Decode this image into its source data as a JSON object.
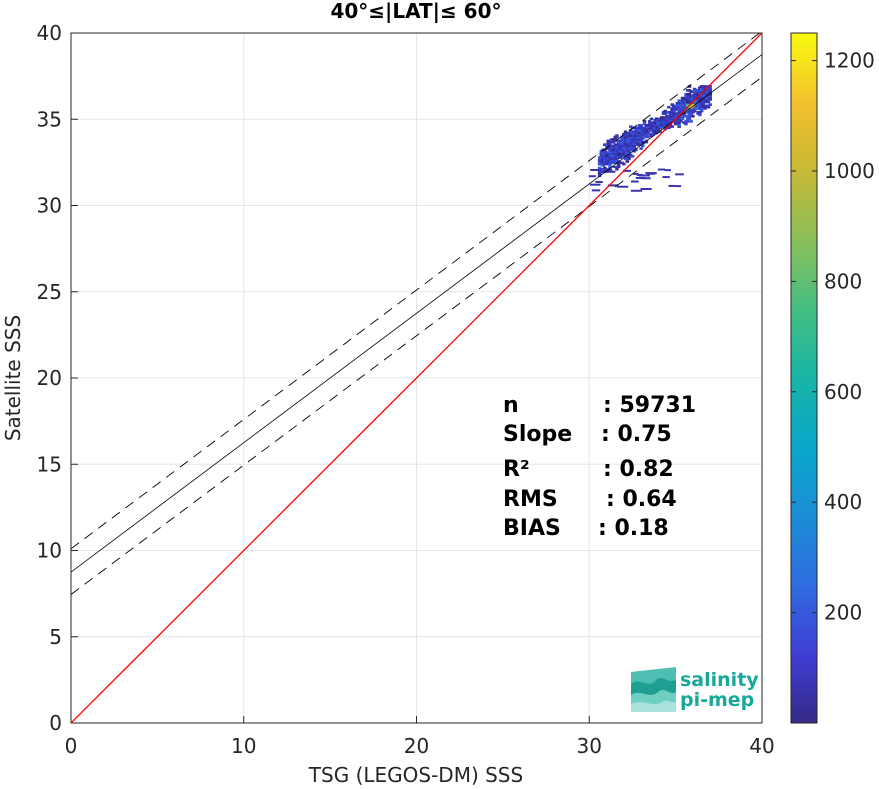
{
  "chart_data": {
    "type": "heatmap",
    "title": "40°≤|LAT|≤ 60°",
    "xlabel": "TSG (LEGOS-DM) SSS",
    "ylabel": "Satellite SSS",
    "xlim": [
      0,
      40
    ],
    "ylim": [
      0,
      40
    ],
    "xticks": [
      "0",
      "10",
      "20",
      "30",
      "40"
    ],
    "yticks": [
      "0",
      "5",
      "10",
      "15",
      "20",
      "25",
      "30",
      "35",
      "40"
    ],
    "grid": true,
    "colorbar": {
      "range": [
        0,
        1250
      ],
      "ticks": [
        "200",
        "400",
        "600",
        "800",
        "1000",
        "1200"
      ],
      "colormap": "parula"
    },
    "lines": {
      "one_to_one": {
        "slope": 1,
        "intercept": 0,
        "color": "#ff0000"
      },
      "regression": {
        "slope": 0.75,
        "intercept": 8.75,
        "color": "#000000"
      },
      "upper_bound": {
        "slope": 0.75,
        "intercept": 10.1,
        "style": "dashed"
      },
      "lower_bound": {
        "slope": 0.75,
        "intercept": 7.45,
        "style": "dashed"
      }
    },
    "density_cloud": {
      "center_x": 34.0,
      "center_y": 34.3,
      "x_range": [
        30.5,
        37.0
      ],
      "y_range": [
        31.8,
        37.0
      ],
      "peak_value": 1200,
      "peak_x": 35.8,
      "peak_y": 35.8
    },
    "stats": [
      {
        "label": "n",
        "value": ": 59731"
      },
      {
        "label": "Slope",
        "value": ": 0.75"
      },
      {
        "label": "R²",
        "value": ": 0.82"
      },
      {
        "label": "RMS",
        "value": ": 0.64"
      },
      {
        "label": "BIAS",
        "value": ": 0.18"
      }
    ]
  },
  "logo": {
    "line1": "salinity",
    "line2": "pi-mep"
  }
}
